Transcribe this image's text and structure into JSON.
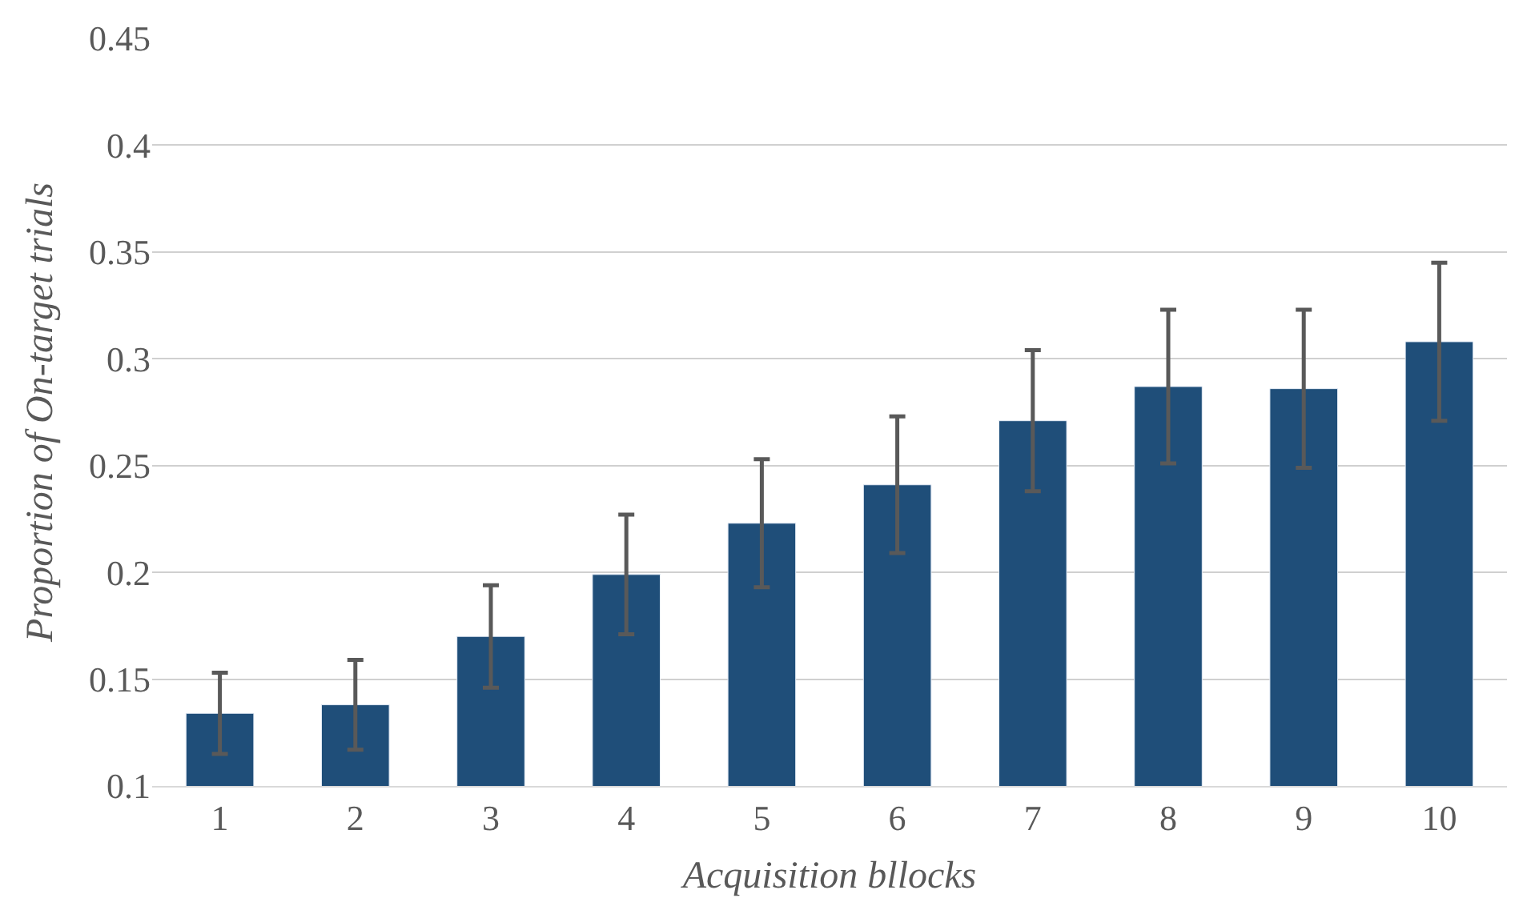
{
  "chart_data": {
    "type": "bar",
    "xlabel": "Acquisition bllocks",
    "ylabel": "Proportion of On-target trials",
    "categories": [
      "1",
      "2",
      "3",
      "4",
      "5",
      "6",
      "7",
      "8",
      "9",
      "10"
    ],
    "values": [
      0.134,
      0.138,
      0.17,
      0.199,
      0.223,
      0.241,
      0.271,
      0.287,
      0.286,
      0.308
    ],
    "errors": [
      0.019,
      0.021,
      0.024,
      0.028,
      0.03,
      0.032,
      0.033,
      0.036,
      0.037,
      0.037
    ],
    "color": "#1f4e79",
    "ylim": [
      0.1,
      0.45
    ],
    "yticks": [
      0.1,
      0.15,
      0.2,
      0.25,
      0.3,
      0.35,
      0.4,
      0.45
    ],
    "grid": "y"
  }
}
